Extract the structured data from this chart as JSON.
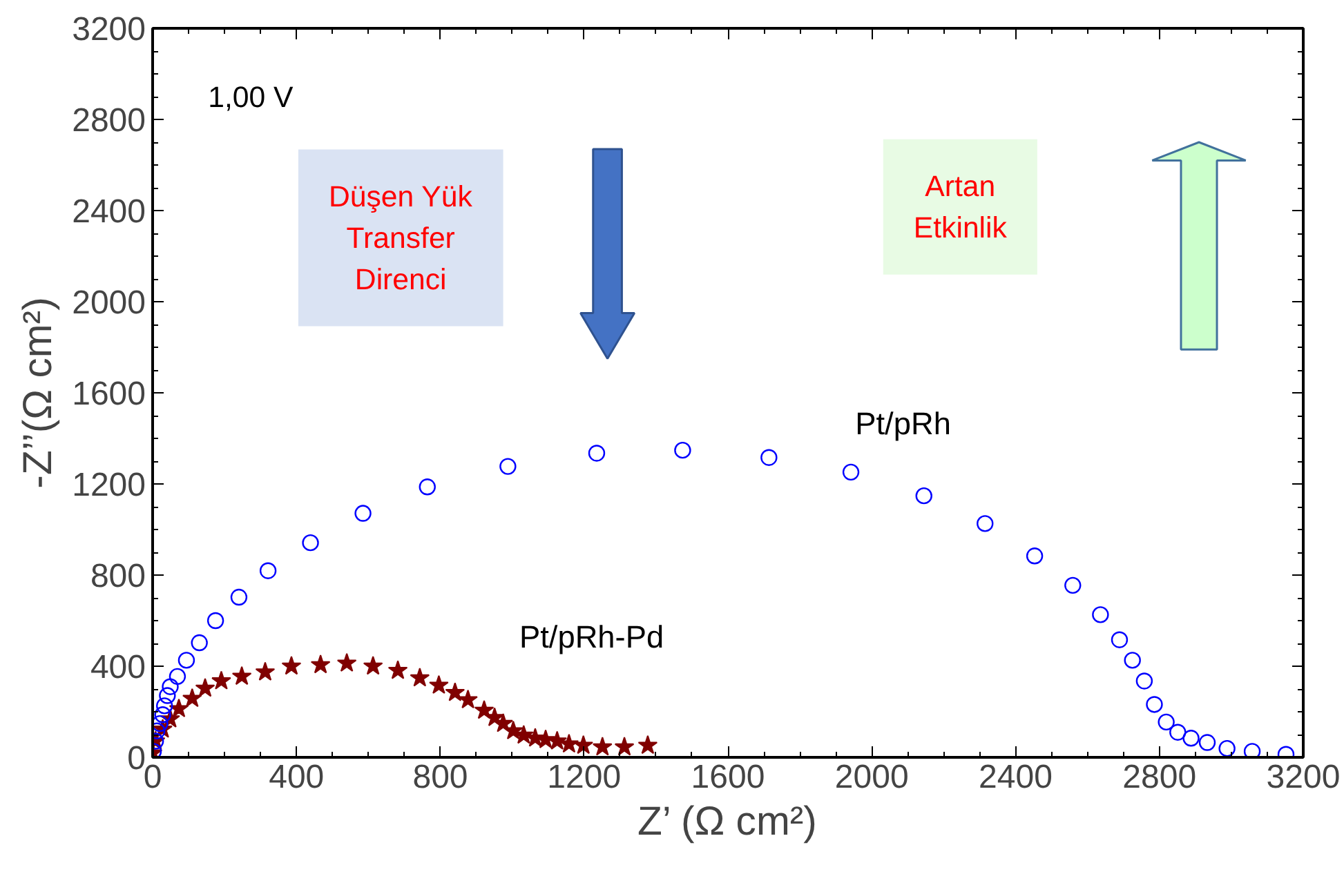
{
  "chart_data": {
    "type": "scatter",
    "xlabel": "Z’ (Ω cm²)",
    "ylabel": "-Z’’(Ω cm²)",
    "xlim": [
      0,
      3200
    ],
    "ylim": [
      0,
      3200
    ],
    "xticks": [
      0,
      400,
      800,
      1200,
      1600,
      2000,
      2400,
      2800,
      3200
    ],
    "yticks": [
      0,
      400,
      800,
      1200,
      1600,
      2000,
      2400,
      2800,
      3200
    ],
    "grid": false,
    "series": [
      {
        "name": "Pt/pRh",
        "color": "#0000ff",
        "marker": "circle",
        "x": [
          2,
          8,
          12,
          20,
          28,
          33,
          41,
          49,
          69,
          94,
          130,
          175,
          240,
          321,
          439,
          585,
          764,
          988,
          1235,
          1474,
          1714,
          1942,
          2145,
          2315,
          2453,
          2559,
          2636,
          2689,
          2725,
          2758,
          2786,
          2819,
          2851,
          2888,
          2933,
          2988,
          3058,
          3152
        ],
        "values": [
          26,
          71,
          116,
          148,
          187,
          226,
          271,
          310,
          355,
          426,
          503,
          600,
          703,
          819,
          942,
          1071,
          1187,
          1277,
          1335,
          1348,
          1316,
          1252,
          1148,
          1026,
          884,
          755,
          626,
          516,
          426,
          335,
          232,
          155,
          110,
          84,
          65,
          39,
          26,
          13
        ]
      },
      {
        "name": "Pt/pRh-Pd",
        "color": "#800000",
        "marker": "star",
        "x": [
          0,
          8,
          28,
          49,
          73,
          110,
          146,
          191,
          248,
          313,
          386,
          467,
          540,
          613,
          682,
          743,
          796,
          841,
          877,
          922,
          951,
          975,
          1003,
          1032,
          1064,
          1093,
          1125,
          1158,
          1198,
          1251,
          1312,
          1377
        ],
        "values": [
          19,
          71,
          123,
          168,
          213,
          258,
          303,
          335,
          355,
          374,
          400,
          406,
          413,
          400,
          381,
          348,
          316,
          284,
          252,
          206,
          174,
          148,
          116,
          97,
          84,
          77,
          71,
          58,
          52,
          45,
          45,
          52
        ]
      }
    ],
    "annotations": [
      "1,00 V",
      "Düşen Yük\nTransfer\nDirenci",
      "Artan\nEtkinlik"
    ]
  }
}
